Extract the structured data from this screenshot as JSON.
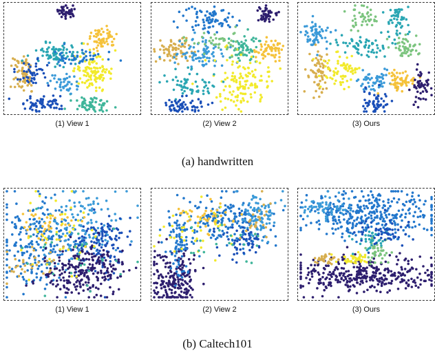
{
  "figure": {
    "rows": [
      {
        "caption": "(a)  handwritten",
        "panels": [
          "(1) View 1",
          "(2) View 2",
          "(3) Ours"
        ]
      },
      {
        "caption": "(b)  Caltech101",
        "panels": [
          "(1) View 1",
          "(2) View 2",
          "(3) Ours"
        ]
      }
    ]
  },
  "chart_data": [
    {
      "type": "scatter",
      "title": "(1) View 1",
      "dataset": "handwritten",
      "clusters": 10,
      "xlabel": "",
      "ylabel": "",
      "grid": false
    },
    {
      "type": "scatter",
      "title": "(2) View 2",
      "dataset": "handwritten",
      "clusters": 10,
      "xlabel": "",
      "ylabel": "",
      "grid": false
    },
    {
      "type": "scatter",
      "title": "(3) Ours",
      "dataset": "handwritten",
      "clusters": 10,
      "xlabel": "",
      "ylabel": "",
      "grid": false
    },
    {
      "type": "scatter",
      "title": "(1) View 1",
      "dataset": "Caltech101",
      "xlabel": "",
      "ylabel": "",
      "grid": false
    },
    {
      "type": "scatter",
      "title": "(2) View 2",
      "dataset": "Caltech101",
      "xlabel": "",
      "ylabel": "",
      "grid": false
    },
    {
      "type": "scatter",
      "title": "(3) Ours",
      "dataset": "Caltech101",
      "xlabel": "",
      "ylabel": "",
      "grid": false
    }
  ],
  "palette": [
    "#2d1e6e",
    "#1a4fb8",
    "#2277cc",
    "#3b9ad8",
    "#2aa6b3",
    "#3fb59a",
    "#7cc47f",
    "#d7ae4e",
    "#f5c23a",
    "#f2ea2c"
  ]
}
